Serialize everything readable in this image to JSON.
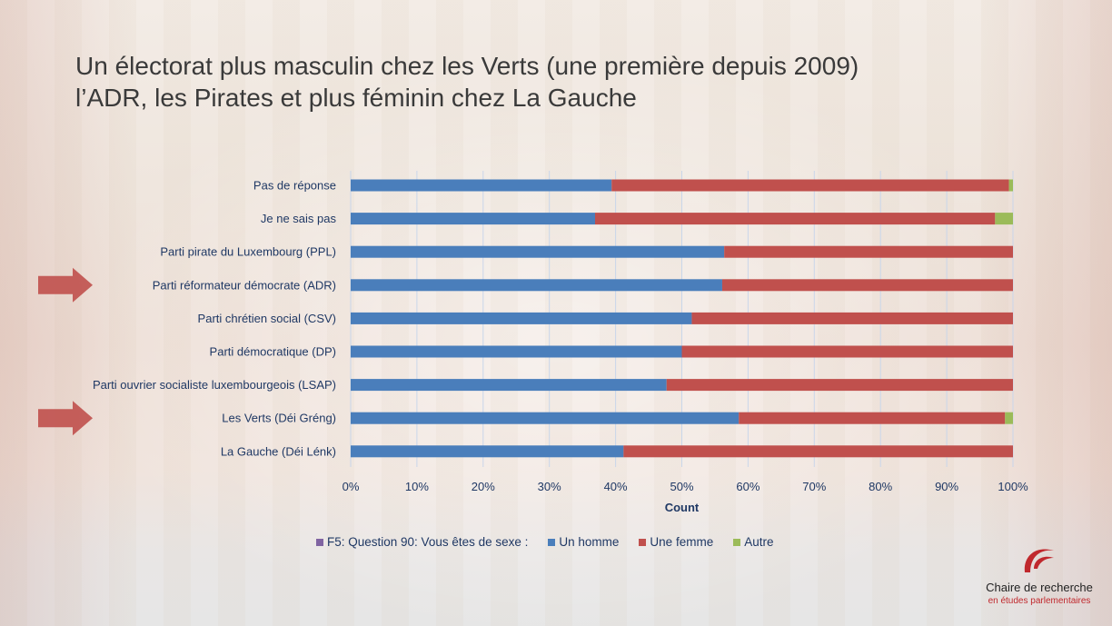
{
  "slide": {
    "title_line1": "Un électorat plus masculin chez les Verts (une première depuis 2009)",
    "title_line2": "l’ADR, les Pirates et plus féminin chez La Gauche"
  },
  "logo": {
    "line1": "Chaire de recherche",
    "line2": "en études parlementaires"
  },
  "colors": {
    "homme": "#4a7ebb",
    "femme": "#c0504d",
    "autre": "#9bbb59",
    "question": "#8064a2",
    "arrow": "#c0504d"
  },
  "chart_data": {
    "type": "bar",
    "orientation": "horizontal",
    "stacked": "percent",
    "categories": [
      "Pas de réponse",
      "Je ne sais pas",
      "Parti pirate du Luxembourg (PPL)",
      "Parti réformateur démocrate (ADR)",
      "Parti chrétien social (CSV)",
      "Parti démocratique (DP)",
      "Parti ouvrier socialiste luxembourgeois (LSAP)",
      "Les Verts (Déi Gréng)",
      "La Gauche (Déi Lénk)"
    ],
    "highlighted": [
      "Parti réformateur démocrate (ADR)",
      "Les Verts (Déi Gréng)"
    ],
    "series": [
      {
        "name": "Un homme",
        "values": [
          39.4,
          36.9,
          56.4,
          56.1,
          51.5,
          50.0,
          47.7,
          58.6,
          41.2
        ]
      },
      {
        "name": "Une femme",
        "values": [
          60.0,
          60.4,
          43.6,
          43.9,
          48.5,
          50.0,
          52.3,
          40.2,
          58.8
        ]
      },
      {
        "name": "Autre",
        "values": [
          0.6,
          2.7,
          0,
          0,
          0,
          0,
          0,
          1.2,
          0
        ]
      }
    ],
    "legend_title": "F5: Question 90: Vous êtes de sexe :",
    "xlabel": "Count",
    "xlim": [
      0,
      100
    ],
    "xticks": [
      "0%",
      "10%",
      "20%",
      "30%",
      "40%",
      "50%",
      "60%",
      "70%",
      "80%",
      "90%",
      "100%"
    ],
    "grid": true,
    "legend_position": "bottom"
  }
}
